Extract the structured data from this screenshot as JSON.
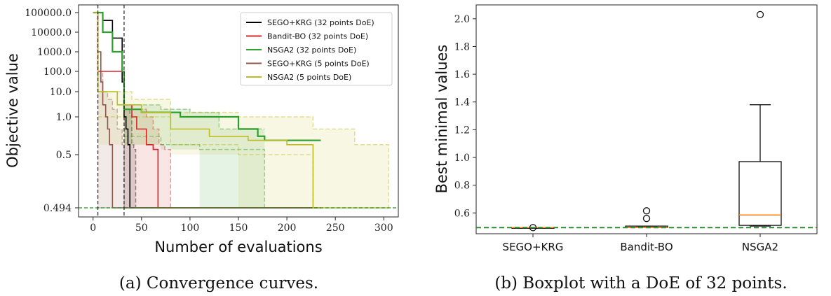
{
  "chart_data": [
    {
      "type": "line",
      "xlabel": "Number of evaluations",
      "ylabel": "Objective value",
      "x_ticks": [
        "0",
        "50",
        "100",
        "150",
        "200",
        "250",
        "300"
      ],
      "y_ticks": [
        "100000.0",
        "10000.0",
        "1000.0",
        "100.0",
        "10.0",
        "1.0",
        "0.5",
        "0.494"
      ],
      "xlim": [
        -15,
        315
      ],
      "reference_line": {
        "y": 0.494,
        "style": "dashed",
        "color": "#2e8b2e"
      },
      "vertical_lines": [
        5,
        32
      ],
      "legend_position": "top-right",
      "series": [
        {
          "name": "SEGO+KRG (32 points DoE)",
          "color": "#000000",
          "mean": [
            [
              0,
              100000
            ],
            [
              10,
              40000
            ],
            [
              20,
              5000
            ],
            [
              30,
              30
            ],
            [
              32,
              1.0
            ],
            [
              34,
              0.8
            ],
            [
              36,
              0.6
            ],
            [
              38,
              0.494
            ],
            [
              235,
              0.494
            ]
          ],
          "band_upper": [
            [
              32,
              2.0
            ],
            [
              38,
              1.2
            ],
            [
              40,
              0.6
            ],
            [
              42,
              0.55
            ],
            [
              44,
              0.494
            ]
          ],
          "band_lower": [
            [
              32,
              0.494
            ],
            [
              44,
              0.494
            ]
          ]
        },
        {
          "name": "Bandit-BO (32 points DoE)",
          "color": "#d62728",
          "mean": [
            [
              0,
              100000
            ],
            [
              5,
              100
            ],
            [
              32,
              3
            ],
            [
              40,
              1.0
            ],
            [
              45,
              0.8
            ],
            [
              55,
              0.6
            ],
            [
              62,
              0.55
            ],
            [
              67,
              0.494
            ],
            [
              235,
              0.494
            ]
          ],
          "band_upper": [
            [
              32,
              3
            ],
            [
              40,
              2
            ],
            [
              55,
              1.0
            ],
            [
              62,
              0.8
            ],
            [
              68,
              0.6
            ],
            [
              74,
              0.55
            ],
            [
              80,
              0.494
            ]
          ],
          "band_lower": [
            [
              32,
              0.494
            ],
            [
              80,
              0.494
            ]
          ]
        },
        {
          "name": "NSGA2 (32 points DoE)",
          "color": "#2ca02c",
          "mean": [
            [
              0,
              100000
            ],
            [
              10,
              10000
            ],
            [
              20,
              1000
            ],
            [
              30,
              100
            ],
            [
              32,
              2.0
            ],
            [
              50,
              1.5
            ],
            [
              90,
              1.0
            ],
            [
              150,
              0.8
            ],
            [
              170,
              0.7
            ],
            [
              177,
              0.65
            ],
            [
              235,
              0.65
            ]
          ],
          "band_upper": [
            [
              32,
              3
            ],
            [
              70,
              2.0
            ],
            [
              100,
              1.5
            ],
            [
              130,
              0.8
            ],
            [
              177,
              0.8
            ]
          ],
          "band_lower": [
            [
              32,
              0.7
            ],
            [
              70,
              0.6
            ],
            [
              110,
              0.55
            ],
            [
              177,
              0.494
            ]
          ]
        },
        {
          "name": "SEGO+KRG (5 points DoE)",
          "color": "#8c564b",
          "mean": [
            [
              0,
              100000
            ],
            [
              5,
              1000
            ],
            [
              8,
              30
            ],
            [
              10,
              3
            ],
            [
              13,
              1.0
            ],
            [
              15,
              0.8
            ],
            [
              17,
              0.6
            ],
            [
              20,
              0.494
            ],
            [
              235,
              0.494
            ]
          ],
          "band_upper": [
            [
              5,
              100
            ],
            [
              10,
              10
            ],
            [
              15,
              5
            ],
            [
              20,
              2
            ],
            [
              25,
              0.8
            ],
            [
              30,
              0.6
            ],
            [
              32,
              0.494
            ]
          ],
          "band_lower": [
            [
              5,
              0.494
            ],
            [
              32,
              0.494
            ]
          ]
        },
        {
          "name": "NSGA2 (5 points DoE)",
          "color": "#bcbd22",
          "mean": [
            [
              0,
              100000
            ],
            [
              5,
              10
            ],
            [
              25,
              3
            ],
            [
              50,
              1.5
            ],
            [
              80,
              0.8
            ],
            [
              120,
              0.7
            ],
            [
              160,
              0.65
            ],
            [
              200,
              0.6
            ],
            [
              227,
              0.494
            ],
            [
              305,
              0.494
            ]
          ],
          "band_upper": [
            [
              5,
              10
            ],
            [
              40,
              5
            ],
            [
              80,
              1.5
            ],
            [
              150,
              1.0
            ],
            [
              227,
              0.8
            ],
            [
              270,
              0.6
            ],
            [
              305,
              0.494
            ]
          ],
          "band_lower": [
            [
              5,
              1.0
            ],
            [
              80,
              0.6
            ],
            [
              150,
              0.5
            ],
            [
              227,
              0.494
            ]
          ]
        }
      ]
    },
    {
      "type": "box",
      "ylabel": "Best minimal values",
      "categories": [
        "SEGO+KRG",
        "Bandit-BO",
        "NSGA2"
      ],
      "y_ticks": [
        "0.6",
        "0.8",
        "1.0",
        "1.2",
        "1.4",
        "1.6",
        "1.8",
        "2.0"
      ],
      "ylim": [
        0.45,
        2.1
      ],
      "reference_line": {
        "y": 0.494,
        "style": "dashed",
        "color": "#2e8b2e"
      },
      "boxes": [
        {
          "category": "SEGO+KRG",
          "q1": 0.494,
          "median": 0.494,
          "q3": 0.494,
          "whisker_low": 0.494,
          "whisker_high": 0.494,
          "outliers": [
            0.494
          ]
        },
        {
          "category": "Bandit-BO",
          "q1": 0.494,
          "median": 0.495,
          "q3": 0.505,
          "whisker_low": 0.494,
          "whisker_high": 0.505,
          "outliers": [
            0.56,
            0.615
          ]
        },
        {
          "category": "NSGA2",
          "q1": 0.51,
          "median": 0.585,
          "q3": 0.97,
          "whisker_low": 0.505,
          "whisker_high": 1.38,
          "outliers": [
            2.03
          ]
        }
      ],
      "median_color": "#ff7f0e"
    }
  ],
  "captions": {
    "left": "(a) Convergence curves.",
    "right": "(b) Boxplot with a DoE of 32 points."
  }
}
